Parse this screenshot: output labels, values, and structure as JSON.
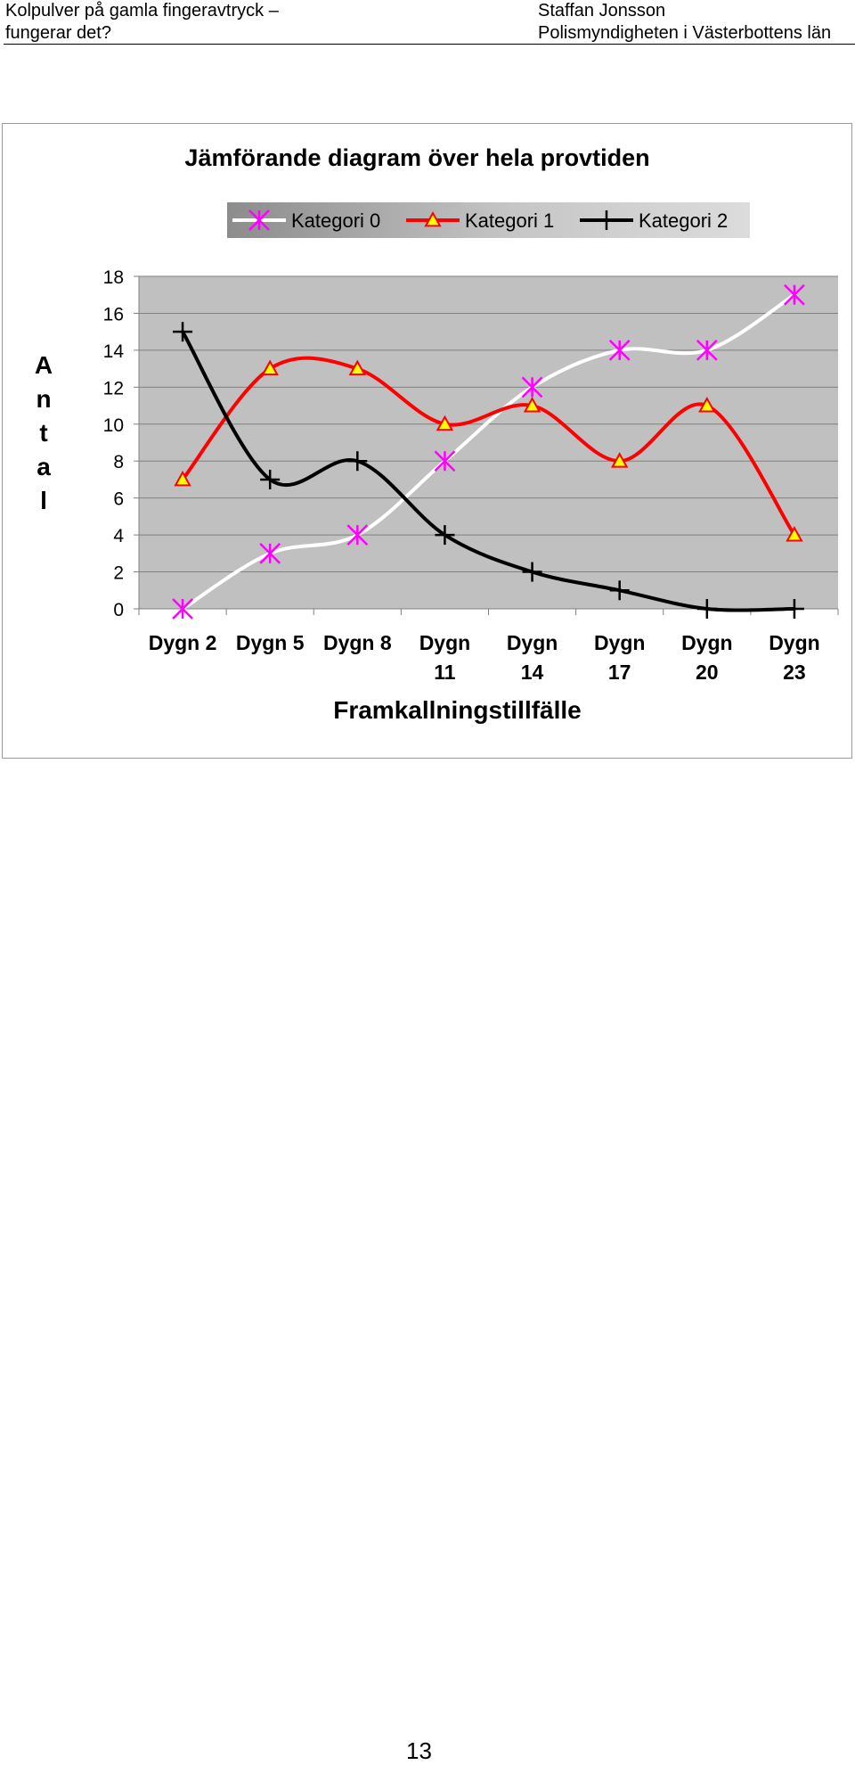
{
  "header": {
    "left_line1": "Kolpulver på gamla fingeravtryck –",
    "left_line2": "fungerar det?",
    "right_line1": "Staffan Jonsson",
    "right_line2": "Polismyndigheten i Västerbottens län"
  },
  "chart_data": {
    "type": "line",
    "smoothed": true,
    "title": "Jämförande diagram över hela provtiden",
    "xlabel": "Framkallningstillfälle",
    "ylabel": "Antal",
    "categories": [
      "Dygn 2",
      "Dygn 5",
      "Dygn 8",
      "Dygn 11",
      "Dygn 14",
      "Dygn 17",
      "Dygn 20",
      "Dygn 23"
    ],
    "ylim": [
      0,
      18
    ],
    "yticks": [
      0,
      2,
      4,
      6,
      8,
      10,
      12,
      14,
      16,
      18
    ],
    "grid": true,
    "plot_background": "#c0c0c0",
    "legend_position": "top",
    "series": [
      {
        "name": "Kategori 0",
        "values": [
          0,
          3,
          4,
          8,
          12,
          14,
          14,
          17
        ],
        "line_color": "#ffffff",
        "marker": "asterisk",
        "marker_color": "#ff00ff"
      },
      {
        "name": "Kategori 1",
        "values": [
          7,
          13,
          13,
          10,
          11,
          8,
          11,
          4
        ],
        "line_color": "#ff0000",
        "marker": "triangle",
        "marker_color": "#ffff00"
      },
      {
        "name": "Kategori 2",
        "values": [
          15,
          7,
          8,
          4,
          2,
          1,
          0,
          0
        ],
        "line_color": "#000000",
        "marker": "plus",
        "marker_color": "#000000"
      }
    ]
  },
  "page_number": "13"
}
